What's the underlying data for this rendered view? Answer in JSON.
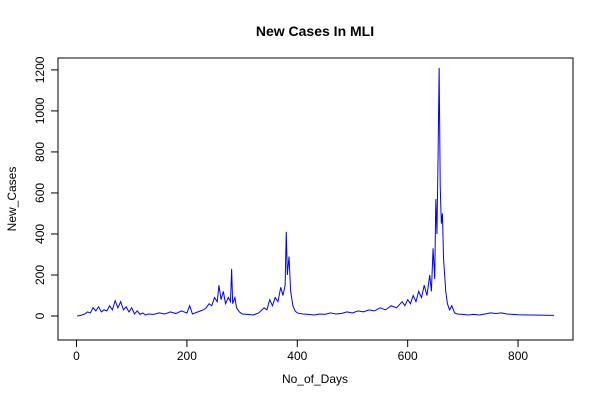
{
  "chart_data": {
    "type": "line",
    "title": "New Cases In MLI",
    "x_label": "No_of_Days",
    "y_label": "New_Cases",
    "x": [
      1,
      5,
      10,
      15,
      20,
      25,
      30,
      35,
      40,
      45,
      50,
      55,
      60,
      65,
      70,
      75,
      80,
      85,
      90,
      95,
      100,
      105,
      110,
      115,
      120,
      125,
      130,
      140,
      150,
      160,
      170,
      180,
      190,
      200,
      205,
      210,
      220,
      230,
      235,
      240,
      245,
      250,
      255,
      258,
      262,
      266,
      270,
      275,
      279,
      281,
      283,
      287,
      290,
      295,
      300,
      310,
      320,
      330,
      340,
      345,
      350,
      355,
      360,
      365,
      370,
      374,
      378,
      380,
      382,
      385,
      388,
      392,
      396,
      400,
      410,
      420,
      430,
      440,
      450,
      460,
      470,
      480,
      490,
      500,
      510,
      520,
      530,
      540,
      550,
      560,
      570,
      580,
      590,
      595,
      600,
      605,
      610,
      615,
      620,
      625,
      630,
      635,
      640,
      643,
      646,
      649,
      651,
      653,
      655,
      657,
      659,
      661,
      663,
      665,
      667,
      669,
      672,
      676,
      680,
      685,
      690,
      700,
      710,
      720,
      730,
      740,
      750,
      760,
      770,
      780,
      790,
      800,
      820,
      840,
      865
    ],
    "series": [
      {
        "name": "New_Cases",
        "color": "#0000ff",
        "values": [
          0,
          2,
          5,
          10,
          20,
          15,
          40,
          25,
          45,
          20,
          30,
          25,
          50,
          30,
          75,
          40,
          70,
          30,
          45,
          20,
          40,
          10,
          25,
          8,
          15,
          5,
          10,
          8,
          15,
          10,
          20,
          12,
          25,
          15,
          50,
          10,
          20,
          30,
          40,
          60,
          50,
          90,
          70,
          150,
          80,
          120,
          60,
          90,
          70,
          230,
          60,
          90,
          40,
          20,
          10,
          8,
          5,
          15,
          40,
          30,
          80,
          50,
          90,
          70,
          140,
          100,
          150,
          410,
          200,
          290,
          120,
          50,
          25,
          15,
          10,
          8,
          5,
          10,
          8,
          15,
          10,
          12,
          20,
          15,
          25,
          20,
          30,
          25,
          40,
          30,
          50,
          40,
          70,
          50,
          80,
          60,
          100,
          70,
          120,
          90,
          150,
          100,
          200,
          120,
          330,
          180,
          570,
          400,
          760,
          1210,
          630,
          450,
          500,
          280,
          200,
          120,
          60,
          30,
          50,
          15,
          10,
          8,
          5,
          8,
          5,
          10,
          15,
          12,
          15,
          10,
          8,
          6,
          5,
          4,
          3
        ]
      }
    ],
    "xlim": [
      -33.56,
      899.56
    ],
    "xticks": [
      0,
      200,
      400,
      600,
      800
    ],
    "ylim": [
      -117,
      1258
    ],
    "yticks": [
      0,
      200,
      400,
      600,
      800,
      1000,
      1200
    ]
  }
}
